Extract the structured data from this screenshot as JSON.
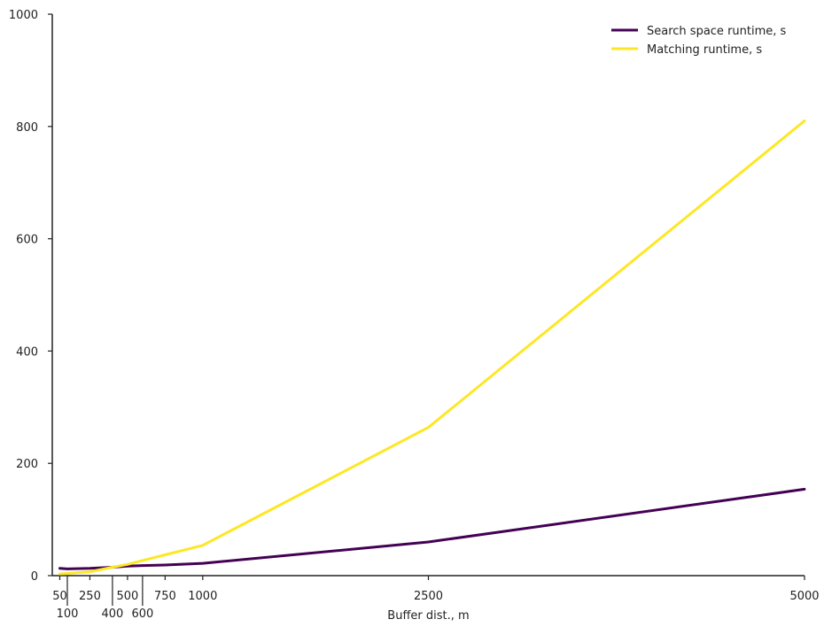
{
  "chart_data": {
    "type": "line",
    "xlabel": "Buffer dist., m",
    "ylabel": "",
    "xlim": [
      0,
      5000
    ],
    "ylim": [
      0,
      1000
    ],
    "x_ticks_top_row": [
      "50",
      "250",
      "500",
      "750",
      "1000",
      "2500",
      "5000"
    ],
    "x_ticks_top_values": [
      50,
      250,
      500,
      750,
      1000,
      2500,
      5000
    ],
    "x_ticks_bottom_row": [
      "100",
      "400",
      "600"
    ],
    "x_ticks_bottom_values": [
      100,
      400,
      600
    ],
    "y_ticks": [
      "0",
      "200",
      "400",
      "600",
      "800",
      "1000"
    ],
    "y_tick_values": [
      0,
      200,
      400,
      600,
      800,
      1000
    ],
    "grid": false,
    "legend_position": "top-right",
    "series": [
      {
        "name": "Search space runtime, s",
        "color": "#440154",
        "x": [
          50,
          100,
          250,
          400,
          500,
          600,
          750,
          1000,
          2500,
          5000
        ],
        "y": [
          13,
          12,
          13,
          15,
          17,
          18,
          19,
          22,
          60,
          154
        ]
      },
      {
        "name": "Matching runtime, s",
        "color": "#fde725",
        "x": [
          50,
          100,
          250,
          400,
          500,
          600,
          750,
          1000,
          2500,
          5000
        ],
        "y": [
          3,
          4,
          7,
          15,
          20,
          27,
          37,
          54,
          264,
          810
        ]
      }
    ]
  }
}
